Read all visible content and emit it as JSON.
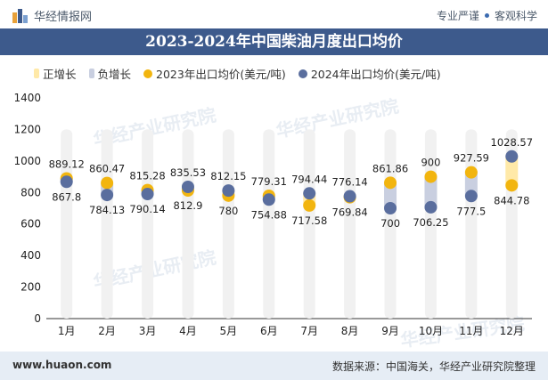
{
  "header": {
    "brand": "华经情报网",
    "tags": [
      "专业严谨",
      "客观科学"
    ]
  },
  "title": "2023-2024年中国柴油月度出口均价",
  "legend": {
    "items": [
      {
        "label": "正增长",
        "color": "#ffe9a8",
        "shape": "rect"
      },
      {
        "label": "负增长",
        "color": "#c9cfe0",
        "shape": "rect"
      },
      {
        "label": "2023年出口均价(美元/吨)",
        "color": "#f2b50f",
        "shape": "dot"
      },
      {
        "label": "2024年出口均价(美元/吨)",
        "color": "#5a6e9e",
        "shape": "dot"
      }
    ]
  },
  "chart_data": {
    "type": "dot-range",
    "categories": [
      "1月",
      "2月",
      "3月",
      "4月",
      "5月",
      "6月",
      "7月",
      "8月",
      "9月",
      "10月",
      "11月",
      "12月"
    ],
    "series": [
      {
        "name": "2023年出口均价(美元/吨)",
        "values": [
          889.12,
          860.47,
          815.28,
          812.9,
          780,
          779.31,
          717.58,
          769.84,
          861.86,
          900,
          927.59,
          844.78
        ]
      },
      {
        "name": "2024年出口均价(美元/吨)",
        "values": [
          867.8,
          784.13,
          790.14,
          835.53,
          812.15,
          754.88,
          794.44,
          776.14,
          700,
          706.25,
          777.5,
          1028.57
        ]
      }
    ],
    "ylim": [
      0,
      1400
    ],
    "yticks": [
      0,
      200,
      400,
      600,
      800,
      1000,
      1200,
      1400
    ],
    "colors": {
      "positive": "#ffe9a8",
      "negative": "#c9cfe0",
      "s2023": "#f2b50f",
      "s2024": "#5a6e9e",
      "background_bar": "#f1f1f1"
    }
  },
  "watermark": "华经产业研究院",
  "footer": {
    "website": "www.huaon.com",
    "source": "数据来源：中国海关，华经产业研究院整理"
  }
}
